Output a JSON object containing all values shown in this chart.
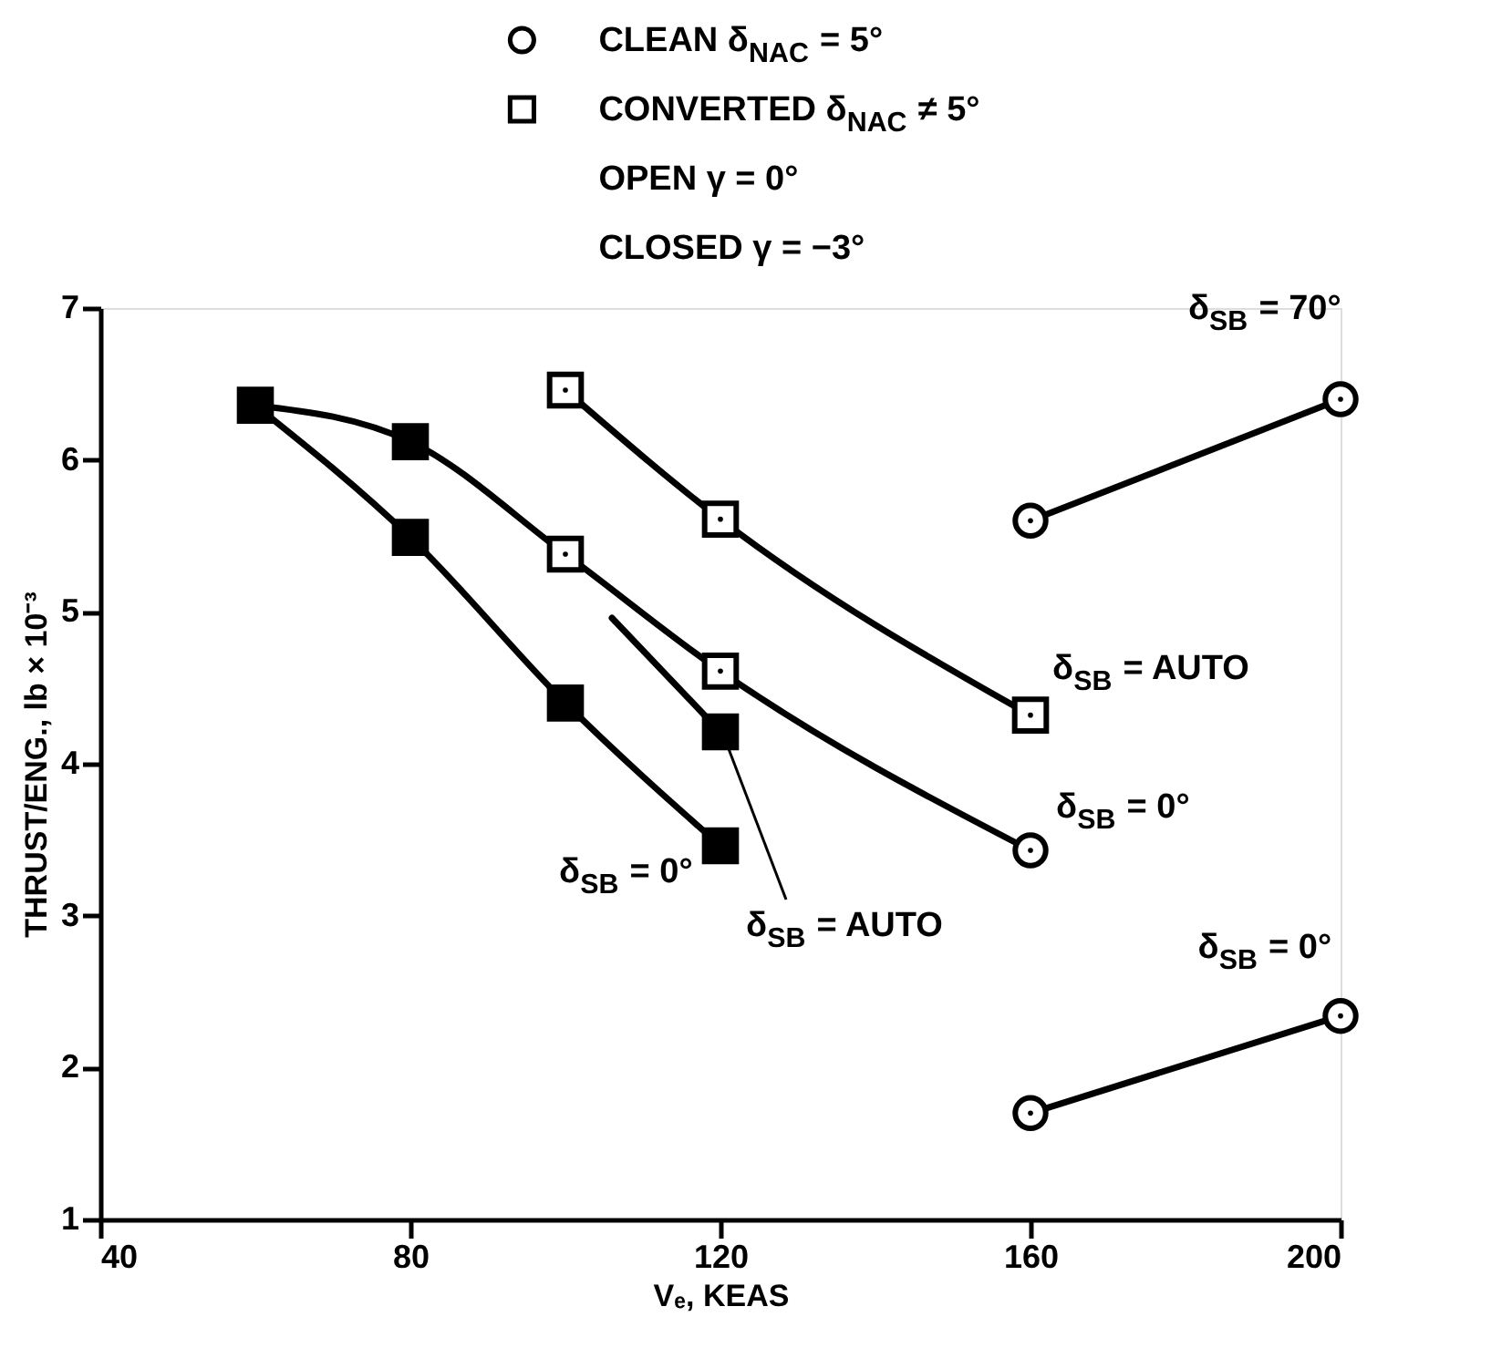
{
  "chart_data": {
    "type": "line",
    "xlabel": "Vₑ, KEAS",
    "ylabel": "THRUST/ENG., lb × 10⁻³",
    "xlim": [
      40,
      200
    ],
    "xticks": [
      40,
      80,
      120,
      160,
      200
    ],
    "ylim": [
      1,
      7
    ],
    "yticks": [
      1,
      2,
      3,
      4,
      5,
      6,
      7
    ],
    "grid": false,
    "legend": "top",
    "line_style": "solid",
    "series": [
      {
        "color": "#000000",
        "marker": "none",
        "x": [
          60,
          80,
          100,
          120
        ],
        "values": [
          6.36,
          5.49,
          4.4,
          3.46
        ]
      },
      {
        "color": "#000000",
        "marker": "none",
        "x": [
          60,
          80,
          100,
          120,
          160
        ],
        "values": [
          6.36,
          6.12,
          5.38,
          4.61,
          3.43
        ]
      },
      {
        "color": "#000000",
        "marker": "none",
        "x": [
          106,
          120
        ],
        "values": [
          4.96,
          4.21
        ]
      },
      {
        "color": "#000000",
        "marker": "none",
        "x": [
          100,
          120,
          160
        ],
        "values": [
          6.46,
          5.61,
          4.32
        ]
      },
      {
        "color": "#000000",
        "marker": "none",
        "x": [
          160,
          200
        ],
        "values": [
          5.6,
          6.4
        ]
      },
      {
        "color": "#000000",
        "marker": "none",
        "x": [
          160,
          200
        ],
        "values": [
          1.7,
          2.34
        ]
      },
      {
        "type": "scatter",
        "color": "#000000",
        "marker": "square",
        "x": [
          60,
          80,
          80,
          100,
          120,
          120
        ],
        "values": [
          6.36,
          6.12,
          5.49,
          4.4,
          3.46,
          4.21
        ]
      },
      {
        "type": "scatter",
        "name": "CLEAN δ$_{NAC}$ = 5°",
        "color": "#ffffff",
        "marker": "circle",
        "x": [
          160,
          160,
          200,
          160,
          200
        ],
        "values": [
          3.43,
          5.6,
          6.4,
          1.7,
          2.34
        ]
      },
      {
        "type": "scatter",
        "name": "CONVERTED δ$_{NAC}$ ≠ 5°",
        "color": "#ffffff",
        "marker": "square",
        "x": [
          100,
          120,
          100,
          120,
          160
        ],
        "values": [
          5.38,
          4.61,
          6.46,
          5.61,
          4.32
        ]
      }
    ],
    "annotations": [
      {
        "text": "δ$_{SB}$ = 70°",
        "x": 200,
        "y": 6.4
      },
      {
        "text": "δ$_{SB}$ = AUTO",
        "x": 160,
        "y": 4.32
      },
      {
        "text": "δ$_{SB}$ = 0°",
        "x": 160,
        "y": 3.43
      },
      {
        "text": "δ$_{SB}$ = 0°",
        "x": 120,
        "y": 3.46
      },
      {
        "text": "δ$_{SB}$ = AUTO",
        "x": 120,
        "y": 4.21
      },
      {
        "text": "δ$_{SB}$ = 0°",
        "x": 200,
        "y": 2.34
      },
      "OPEN γ = 0°",
      "CLOSED γ = −3°"
    ]
  }
}
